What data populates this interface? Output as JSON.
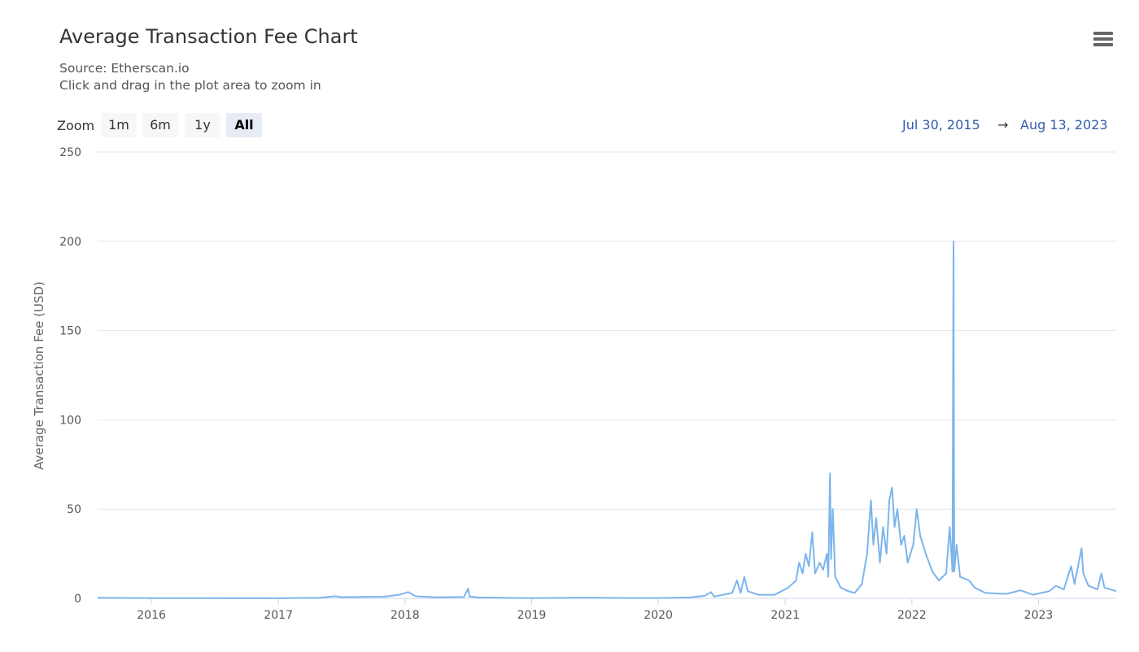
{
  "header": {
    "title": "Average Transaction Fee Chart",
    "subtitle_source": "Source: Etherscan.io",
    "subtitle_hint": "Click and drag in the plot area to zoom in",
    "menu_icon": "hamburger-menu-icon"
  },
  "zoom": {
    "label": "Zoom",
    "buttons": [
      {
        "label": "1m",
        "active": false
      },
      {
        "label": "6m",
        "active": false
      },
      {
        "label": "1y",
        "active": false
      },
      {
        "label": "All",
        "active": true
      }
    ]
  },
  "range": {
    "from": "Jul 30, 2015",
    "arrow": "→",
    "to": "Aug 13, 2023"
  },
  "colors": {
    "line": "#7cb5ec",
    "grid": "#e6e6e6",
    "range_text": "#335cad"
  },
  "chart_data": {
    "type": "line",
    "title": "Average Transaction Fee Chart",
    "subtitle": "Source: Etherscan.io",
    "xlabel": "",
    "ylabel": "Average Transaction Fee (USD)",
    "xlim": [
      "2015-07-30",
      "2023-08-13"
    ],
    "ylim": [
      0,
      250
    ],
    "y_ticks": [
      0,
      50,
      100,
      150,
      200,
      250
    ],
    "x_ticks": [
      "2016",
      "2017",
      "2018",
      "2019",
      "2020",
      "2021",
      "2022",
      "2023"
    ],
    "grid": true,
    "legend": "none",
    "series": [
      {
        "points": [
          [
            "2015-07-30",
            0.3
          ],
          [
            "2016-01-01",
            0.1
          ],
          [
            "2016-06-01",
            0.1
          ],
          [
            "2017-01-01",
            0.05
          ],
          [
            "2017-05-01",
            0.3
          ],
          [
            "2017-06-15",
            1.2
          ],
          [
            "2017-07-01",
            0.7
          ],
          [
            "2017-09-01",
            0.8
          ],
          [
            "2017-11-01",
            0.9
          ],
          [
            "2017-12-15",
            2.0
          ],
          [
            "2018-01-10",
            3.5
          ],
          [
            "2018-02-01",
            1.2
          ],
          [
            "2018-04-01",
            0.6
          ],
          [
            "2018-06-20",
            0.8
          ],
          [
            "2018-07-02",
            5.5
          ],
          [
            "2018-07-06",
            1.0
          ],
          [
            "2018-08-01",
            0.5
          ],
          [
            "2018-10-01",
            0.3
          ],
          [
            "2019-01-01",
            0.1
          ],
          [
            "2019-06-01",
            0.4
          ],
          [
            "2019-10-01",
            0.2
          ],
          [
            "2020-01-01",
            0.2
          ],
          [
            "2020-04-01",
            0.5
          ],
          [
            "2020-05-15",
            1.5
          ],
          [
            "2020-06-01",
            3.5
          ],
          [
            "2020-06-10",
            1.0
          ],
          [
            "2020-08-01",
            3.0
          ],
          [
            "2020-08-15",
            10
          ],
          [
            "2020-08-25",
            3.0
          ],
          [
            "2020-09-05",
            12
          ],
          [
            "2020-09-15",
            4.0
          ],
          [
            "2020-10-15",
            2.0
          ],
          [
            "2020-12-01",
            2.0
          ],
          [
            "2021-01-10",
            6.0
          ],
          [
            "2021-02-01",
            10
          ],
          [
            "2021-02-10",
            20
          ],
          [
            "2021-02-20",
            14
          ],
          [
            "2021-03-01",
            25
          ],
          [
            "2021-03-10",
            18
          ],
          [
            "2021-03-20",
            37
          ],
          [
            "2021-03-28",
            14
          ],
          [
            "2021-04-10",
            20
          ],
          [
            "2021-04-20",
            16
          ],
          [
            "2021-05-01",
            25
          ],
          [
            "2021-05-05",
            12
          ],
          [
            "2021-05-10",
            70
          ],
          [
            "2021-05-13",
            22
          ],
          [
            "2021-05-18",
            50
          ],
          [
            "2021-05-25",
            12
          ],
          [
            "2021-06-10",
            6.0
          ],
          [
            "2021-07-01",
            4.0
          ],
          [
            "2021-07-20",
            3.0
          ],
          [
            "2021-08-10",
            8.0
          ],
          [
            "2021-08-25",
            25
          ],
          [
            "2021-09-05",
            55
          ],
          [
            "2021-09-12",
            30
          ],
          [
            "2021-09-20",
            45
          ],
          [
            "2021-10-01",
            20
          ],
          [
            "2021-10-10",
            40
          ],
          [
            "2021-10-20",
            25
          ],
          [
            "2021-10-28",
            55
          ],
          [
            "2021-11-05",
            62
          ],
          [
            "2021-11-12",
            40
          ],
          [
            "2021-11-20",
            50
          ],
          [
            "2021-12-01",
            30
          ],
          [
            "2021-12-10",
            35
          ],
          [
            "2021-12-20",
            20
          ],
          [
            "2022-01-05",
            30
          ],
          [
            "2022-01-15",
            50
          ],
          [
            "2022-01-25",
            35
          ],
          [
            "2022-02-10",
            25
          ],
          [
            "2022-03-01",
            15
          ],
          [
            "2022-03-20",
            10
          ],
          [
            "2022-04-10",
            14
          ],
          [
            "2022-04-20",
            40
          ],
          [
            "2022-04-28",
            15
          ],
          [
            "2022-05-01",
            200
          ],
          [
            "2022-05-03",
            15
          ],
          [
            "2022-05-10",
            30
          ],
          [
            "2022-05-20",
            12
          ],
          [
            "2022-06-15",
            10
          ],
          [
            "2022-07-01",
            6.0
          ],
          [
            "2022-08-01",
            3.0
          ],
          [
            "2022-10-01",
            2.5
          ],
          [
            "2022-11-10",
            4.5
          ],
          [
            "2022-12-15",
            2.0
          ],
          [
            "2023-02-01",
            4.0
          ],
          [
            "2023-02-20",
            7.0
          ],
          [
            "2023-03-15",
            5.0
          ],
          [
            "2023-04-05",
            18
          ],
          [
            "2023-04-15",
            8.0
          ],
          [
            "2023-05-05",
            28
          ],
          [
            "2023-05-10",
            14
          ],
          [
            "2023-05-25",
            7.0
          ],
          [
            "2023-06-20",
            5.0
          ],
          [
            "2023-07-01",
            14
          ],
          [
            "2023-07-10",
            6.0
          ],
          [
            "2023-08-13",
            4.0
          ]
        ]
      }
    ]
  }
}
